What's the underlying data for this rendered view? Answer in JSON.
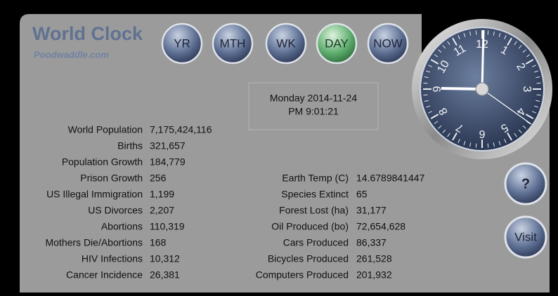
{
  "header": {
    "title": "World Clock",
    "subtitle": "Poodwaddle.com"
  },
  "nav": [
    "YR",
    "MTH",
    "WK",
    "DAY",
    "NOW"
  ],
  "datetime": {
    "date": "Monday 2014-11-24",
    "time": "PM 9:01:21"
  },
  "left_stats": [
    {
      "label": "World Population",
      "value": "7,175,424,116"
    },
    {
      "label": "Births",
      "value": "321,657"
    },
    {
      "label": "Population Growth",
      "value": "184,779"
    },
    {
      "label": "Prison Growth",
      "value": "256"
    },
    {
      "label": "US Illegal Immigration",
      "value": "1,199"
    },
    {
      "label": "US Divorces",
      "value": "2,207"
    },
    {
      "label": "Abortions",
      "value": "110,319"
    },
    {
      "label": "Mothers Die/Abortions",
      "value": "168"
    },
    {
      "label": "HIV Infections",
      "value": "10,312"
    },
    {
      "label": "Cancer Incidence",
      "value": "26,381"
    }
  ],
  "right_stats": [
    {
      "label": "Earth Temp (C)",
      "value": "14.6789841447"
    },
    {
      "label": "Species Extinct",
      "value": "65"
    },
    {
      "label": "Forest Lost (ha)",
      "value": "31,177"
    },
    {
      "label": "Oil Produced (bo)",
      "value": "72,654,628"
    },
    {
      "label": "Cars Produced",
      "value": "86,337"
    },
    {
      "label": "Bicycles Produced",
      "value": "261,528"
    },
    {
      "label": "Computers Produced",
      "value": "201,932"
    }
  ],
  "clock": {
    "numerals": [
      "12",
      "1",
      "2",
      "3",
      "4",
      "5",
      "6",
      "7",
      "8",
      "9",
      "10",
      "11"
    ]
  },
  "buttons": [
    "?",
    "Visit"
  ]
}
